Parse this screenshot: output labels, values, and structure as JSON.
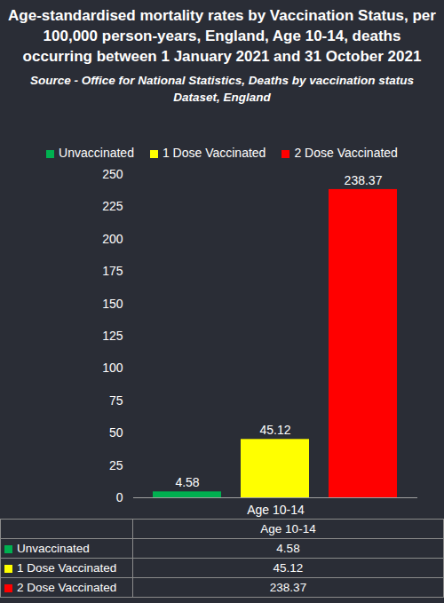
{
  "chart_data": {
    "type": "bar",
    "title": "Age-standardised mortality rates by Vaccination Status, per 100,000 person-years, England, Age 10-14, deaths occurring between 1 January 2021 and 31 October 2021",
    "subtitle": "Source - Office for National Statistics, Deaths by vaccination status Dataset, England",
    "categories": [
      "Age 10-14"
    ],
    "series": [
      {
        "name": "Unvaccinated",
        "color": "#00b050",
        "values": [
          4.58
        ]
      },
      {
        "name": "1 Dose Vaccinated",
        "color": "#ffff00",
        "values": [
          45.12
        ]
      },
      {
        "name": "2 Dose Vaccinated",
        "color": "#ff0000",
        "values": [
          238.37
        ]
      }
    ],
    "ylim": [
      0,
      250
    ],
    "yticks": [
      0,
      25,
      50,
      75,
      100,
      125,
      150,
      175,
      200,
      225,
      250
    ],
    "grid": false,
    "legend": "top",
    "data_labels": true
  }
}
